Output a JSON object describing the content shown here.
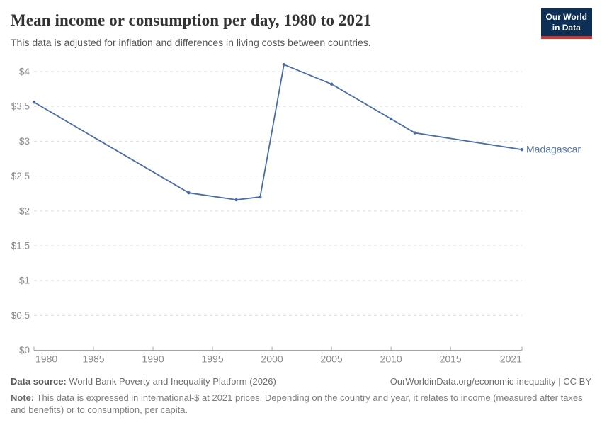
{
  "header": {
    "title": "Mean income or consumption per day, 1980 to 2021",
    "subtitle": "This data is adjusted for inflation and differences in living costs between countries.",
    "logo": {
      "line1": "Our World",
      "line2": "in Data"
    }
  },
  "chart_data": {
    "type": "line",
    "title": "Mean income or consumption per day, 1980 to 2021",
    "xlabel": "",
    "ylabel": "",
    "xlim": [
      1980,
      2021
    ],
    "ylim": [
      0,
      4.1
    ],
    "x_ticks": [
      1980,
      1985,
      1990,
      1995,
      2000,
      2005,
      2010,
      2015,
      2021
    ],
    "y_ticks": [
      0,
      0.5,
      1,
      1.5,
      2,
      2.5,
      3,
      3.5,
      4
    ],
    "y_tick_prefix": "$",
    "grid": "horizontal-dashed",
    "legend_position": "line-end-label",
    "series": [
      {
        "name": "Madagascar",
        "x": [
          1980,
          1993,
          1997,
          1999,
          2001,
          2005,
          2010,
          2012,
          2021
        ],
        "values": [
          3.56,
          2.26,
          2.16,
          2.2,
          4.1,
          3.82,
          3.32,
          3.12,
          2.88
        ]
      }
    ]
  },
  "colors": {
    "series_line": "#4a6da8",
    "series_label": "#5878ae",
    "axis_text": "#8b8b8b",
    "gridline": "#dedede",
    "axis_line": "#a3a3a3",
    "title_text": "#333333",
    "subtitle_text": "#555555",
    "footer_text": "#6e6e6e",
    "note_text": "#7d7d7d",
    "logo_bg": "#0d2e55",
    "logo_accent": "#cf3531"
  },
  "footer": {
    "data_source_label": "Data source:",
    "data_source_value": "World Bank Poverty and Inequality Platform (2026)",
    "link": "OurWorldinData.org/economic-inequality",
    "separator": "|",
    "license": "CC BY",
    "note_label": "Note:",
    "note_value": "This data is expressed in international-$ at 2021 prices. Depending on the country and year, it relates to income (measured after taxes and benefits) or to consumption, per capita."
  }
}
